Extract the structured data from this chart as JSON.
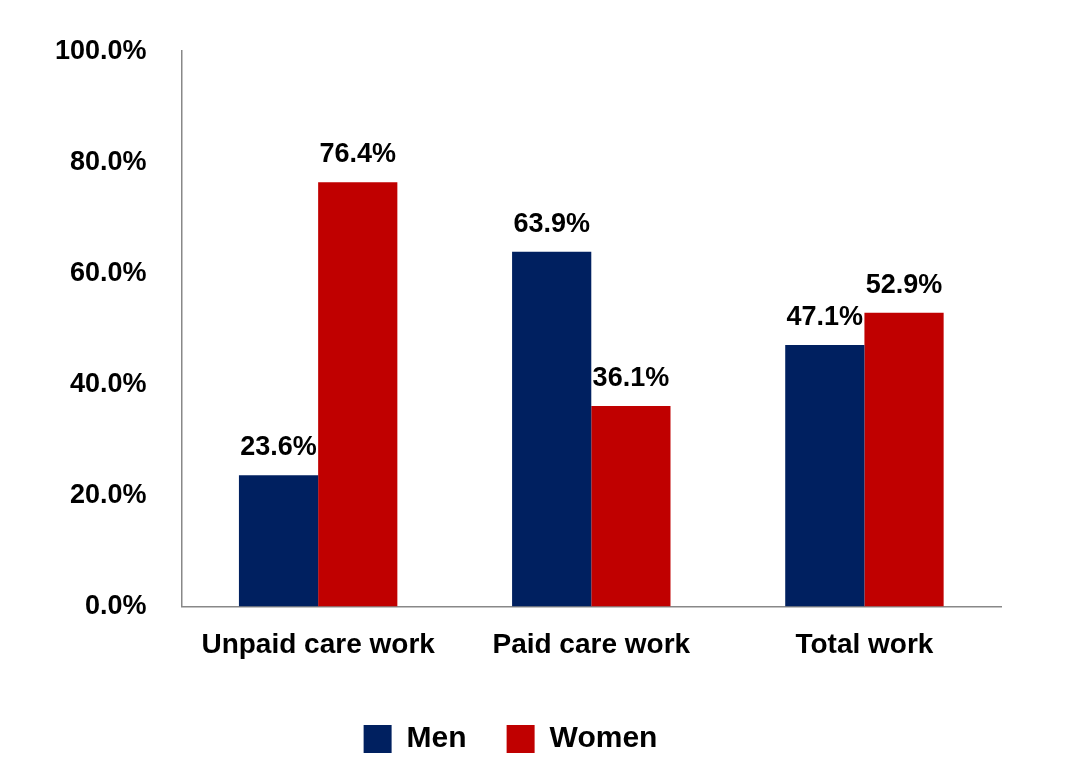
{
  "chart_data": {
    "type": "bar",
    "categories": [
      "Unpaid care work",
      "Paid care work",
      "Total work"
    ],
    "series": [
      {
        "name": "Men",
        "color": "#002060",
        "values": [
          23.6,
          63.9,
          47.1
        ],
        "value_labels": [
          "23.6%",
          "63.9%",
          "47.1%"
        ]
      },
      {
        "name": "Women",
        "color": "#c00000",
        "values": [
          76.4,
          36.1,
          52.9
        ],
        "value_labels": [
          "76.4%",
          "36.1%",
          "52.9%"
        ]
      }
    ],
    "ylim": [
      0,
      100
    ],
    "yticks": [
      {
        "value": 0,
        "label": "0.0%"
      },
      {
        "value": 20,
        "label": "20.0%"
      },
      {
        "value": 40,
        "label": "40.0%"
      },
      {
        "value": 60,
        "label": "60.0%"
      },
      {
        "value": 80,
        "label": "80.0%"
      },
      {
        "value": 100,
        "label": "100.0%"
      }
    ],
    "grid": false,
    "legend": "bottom"
  }
}
